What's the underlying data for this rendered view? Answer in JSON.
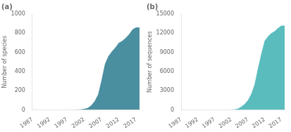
{
  "chart_data": [
    {
      "type": "area",
      "title": "(a)",
      "ylabel": "Number of species",
      "x": [
        1987,
        1988,
        1989,
        1990,
        1991,
        1992,
        1993,
        1994,
        1995,
        1996,
        1997,
        1998,
        1999,
        2000,
        2001,
        2002,
        2003,
        2004,
        2005,
        2006,
        2007,
        2008,
        2009,
        2010,
        2011,
        2012,
        2013,
        2014,
        2015,
        2016,
        2017,
        2018
      ],
      "values": [
        0,
        0,
        0,
        0,
        0,
        0,
        0,
        0,
        0,
        0,
        0,
        1,
        2,
        3,
        5,
        10,
        20,
        45,
        90,
        160,
        310,
        480,
        560,
        610,
        650,
        700,
        720,
        750,
        790,
        840,
        860,
        860
      ],
      "color": "#4a8fa0",
      "xlim": [
        1987,
        2018
      ],
      "xticks": [
        1987,
        1992,
        1997,
        2002,
        2007,
        2012,
        2017
      ],
      "ylim": [
        0,
        1000
      ],
      "yticks": [
        0,
        200,
        400,
        600,
        800,
        1000
      ],
      "grid": false
    },
    {
      "type": "area",
      "title": "(b)",
      "ylabel": "Number of sequences",
      "x": [
        1987,
        1988,
        1989,
        1990,
        1991,
        1992,
        1993,
        1994,
        1995,
        1996,
        1997,
        1998,
        1999,
        2000,
        2001,
        2002,
        2003,
        2004,
        2005,
        2006,
        2007,
        2008,
        2009,
        2010,
        2011,
        2012,
        2013,
        2014,
        2015,
        2016,
        2017,
        2018
      ],
      "values": [
        0,
        0,
        0,
        0,
        0,
        0,
        0,
        0,
        0,
        0,
        0,
        0,
        0,
        0,
        0,
        30,
        80,
        200,
        500,
        900,
        1500,
        2500,
        4000,
        6500,
        8800,
        10800,
        11500,
        12000,
        12300,
        12800,
        13200,
        13200
      ],
      "color": "#5bbcbe",
      "xlim": [
        1987,
        2018
      ],
      "xticks": [
        1987,
        1992,
        1997,
        2002,
        2007,
        2012,
        2017
      ],
      "ylim": [
        0,
        15000
      ],
      "yticks": [
        0,
        3000,
        6000,
        9000,
        12000,
        15000
      ],
      "grid": false
    }
  ]
}
